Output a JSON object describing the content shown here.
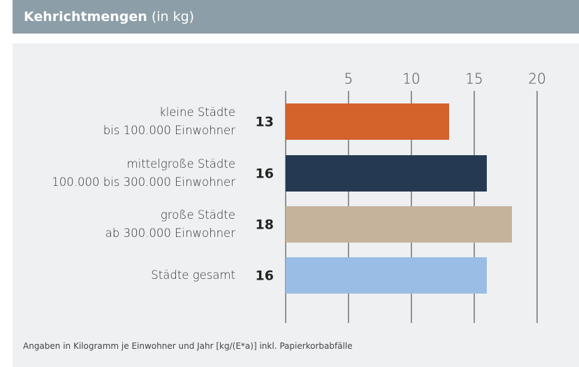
{
  "chart_data": {
    "type": "bar",
    "orientation": "horizontal",
    "title": "Kehrichtmengen",
    "subtitle": "(in kg)",
    "categories": [
      "kleine Städte\nbis 100.000 Einwohner",
      "mittelgroße Städte\n100.000 bis 300.000 Einwohner",
      "große Städte\nab 300.000 Einwohner",
      "Städte gesamt"
    ],
    "values": [
      13,
      16,
      18,
      16
    ],
    "colors": [
      "#d4622b",
      "#253a52",
      "#c5b39b",
      "#99bde4"
    ],
    "xlim": [
      0,
      20
    ],
    "xticks": [
      5,
      10,
      15,
      20
    ],
    "grid": true,
    "note": "Angaben in Kilogramm je Einwohner und Jahr [kg/(E*a)] inkl. Papierkorbabfälle"
  }
}
